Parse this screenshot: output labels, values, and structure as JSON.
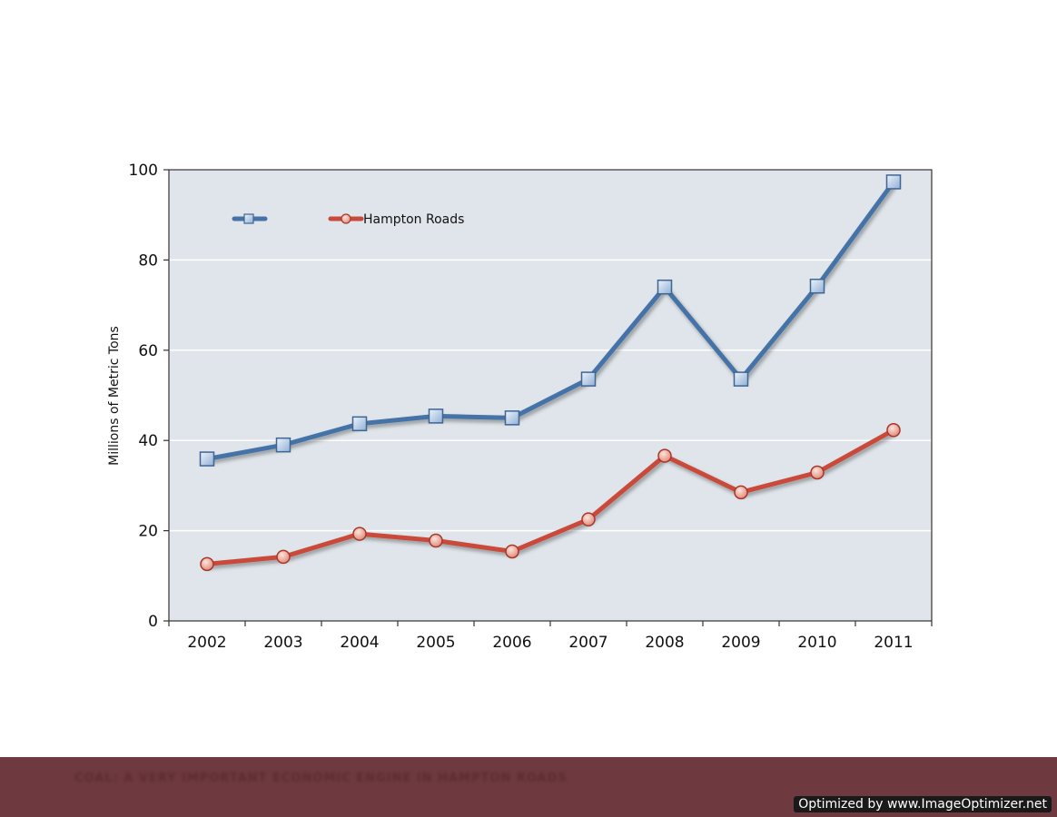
{
  "chart_data": {
    "type": "line",
    "title": "",
    "xlabel": "",
    "ylabel": "Millions of Metric Tons",
    "ylim": [
      0,
      100
    ],
    "yticks": [
      0,
      20,
      40,
      60,
      80,
      100
    ],
    "grid": "horizontal",
    "legend_position": "top-left",
    "categories": [
      "2002",
      "2003",
      "2004",
      "2005",
      "2006",
      "2007",
      "2008",
      "2009",
      "2010",
      "2011"
    ],
    "series": [
      {
        "name": "",
        "color": "#4573a8",
        "marker": "square",
        "values": [
          35.9,
          39.0,
          43.7,
          45.4,
          45.0,
          53.6,
          74.0,
          53.6,
          74.2,
          97.3
        ]
      },
      {
        "name": "Hampton Roads",
        "color": "#c94a3a",
        "marker": "circle",
        "values": [
          12.6,
          14.2,
          19.3,
          17.8,
          15.4,
          22.5,
          36.6,
          28.5,
          32.9,
          42.3
        ]
      }
    ]
  },
  "footer": {
    "caption": "COAL: A VERY IMPORTANT ECONOMIC ENGINE IN HAMPTON ROADS",
    "background": "#6e3a40"
  },
  "watermark": {
    "text": "Optimized by www.ImageOptimizer.net"
  }
}
